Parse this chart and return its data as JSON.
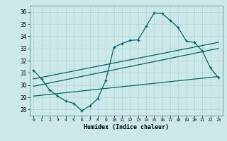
{
  "xlabel": "Humidex (Indice chaleur)",
  "bg_color": "#cce8e8",
  "grid_color": "#b0d4d4",
  "line_color": "#006666",
  "xlim": [
    -0.5,
    23.5
  ],
  "ylim": [
    27.5,
    36.5
  ],
  "yticks": [
    28,
    29,
    30,
    31,
    32,
    33,
    34,
    35,
    36
  ],
  "xticks": [
    0,
    1,
    2,
    3,
    4,
    5,
    6,
    7,
    8,
    9,
    10,
    11,
    12,
    13,
    14,
    15,
    16,
    17,
    18,
    19,
    20,
    21,
    22,
    23
  ],
  "main_x": [
    0,
    1,
    2,
    3,
    4,
    5,
    6,
    7,
    8,
    9,
    10,
    11,
    12,
    13,
    14,
    15,
    16,
    17,
    18,
    19,
    20,
    21,
    22,
    23
  ],
  "main_y": [
    31.2,
    30.5,
    29.6,
    29.1,
    28.7,
    28.5,
    27.9,
    28.3,
    28.9,
    30.4,
    33.1,
    33.4,
    33.65,
    33.7,
    34.8,
    35.9,
    35.85,
    35.3,
    34.7,
    33.6,
    33.5,
    32.8,
    31.4,
    30.6
  ],
  "trend1_x": [
    0,
    23
  ],
  "trend1_y": [
    30.5,
    33.5
  ],
  "trend2_x": [
    0,
    23
  ],
  "trend2_y": [
    29.9,
    33.0
  ],
  "trend3_x": [
    0,
    23
  ],
  "trend3_y": [
    29.1,
    30.7
  ]
}
